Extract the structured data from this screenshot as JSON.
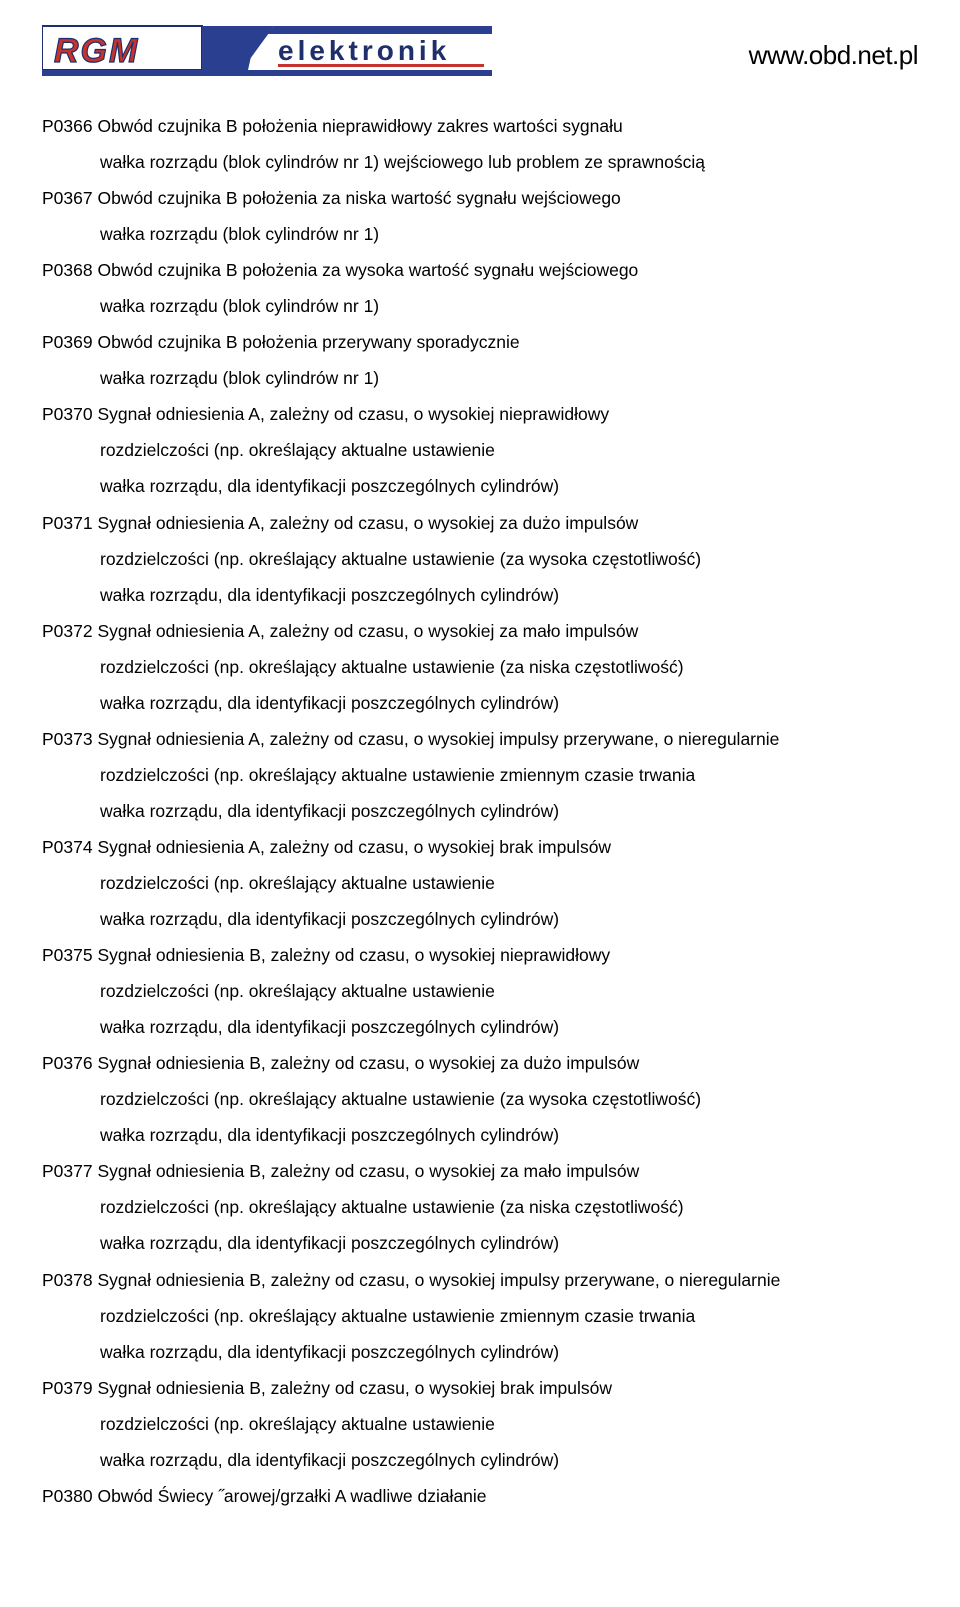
{
  "header": {
    "logo_rgm_text": "RGM",
    "logo_elek_text": "elektronik",
    "url": "www.obd.net.pl",
    "logo_colors": {
      "rgm_fill": "#c4332d",
      "rgm_outline": "#1f2f6b",
      "bar_blue": "#2a3f8f",
      "elek_text": "#1f2f6b",
      "underline": "#c4332d"
    }
  },
  "entries": [
    {
      "code": "P0366",
      "title": "Obwód czujnika B położenia nieprawidłowy zakres wartości sygnału",
      "subs": [
        "wałka rozrządu (blok cylindrów nr 1) wejściowego lub problem ze sprawnością"
      ]
    },
    {
      "code": "P0367",
      "title": "Obwód czujnika B położenia za niska wartość sygnału wejściowego",
      "subs": [
        "wałka rozrządu (blok cylindrów nr 1)"
      ]
    },
    {
      "code": "P0368",
      "title": "Obwód czujnika B położenia za wysoka wartość sygnału wejściowego",
      "subs": [
        "wałka rozrządu (blok cylindrów nr 1)"
      ]
    },
    {
      "code": "P0369",
      "title": "Obwód czujnika B położenia przerywany sporadycznie",
      "subs": [
        "wałka rozrządu (blok cylindrów nr 1)"
      ]
    },
    {
      "code": "P0370",
      "title": "Sygnał odniesienia A, zależny od czasu, o wysokiej nieprawidłowy",
      "subs": [
        "rozdzielczości (np. określający aktualne ustawienie",
        "wałka rozrządu, dla identyfikacji poszczególnych cylindrów)"
      ]
    },
    {
      "code": "P0371",
      "title": "Sygnał odniesienia A, zależny od czasu, o wysokiej za dużo impulsów",
      "subs": [
        "rozdzielczości (np. określający aktualne ustawienie (za wysoka częstotliwość)",
        "wałka rozrządu, dla identyfikacji poszczególnych cylindrów)"
      ]
    },
    {
      "code": "P0372",
      "title": "Sygnał odniesienia A, zależny od czasu, o wysokiej za mało impulsów",
      "subs": [
        "rozdzielczości (np. określający aktualne ustawienie (za niska częstotliwość)",
        "wałka rozrządu, dla identyfikacji poszczególnych cylindrów)"
      ]
    },
    {
      "code": "P0373",
      "title": "Sygnał odniesienia A, zależny od czasu, o wysokiej impulsy przerywane, o nieregularnie",
      "subs": [
        "rozdzielczości (np. określający aktualne ustawienie zmiennym czasie trwania",
        "wałka rozrządu, dla identyfikacji poszczególnych cylindrów)"
      ]
    },
    {
      "code": "P0374",
      "title": "Sygnał odniesienia A, zależny od czasu, o wysokiej brak impulsów",
      "subs": [
        "rozdzielczości (np. określający aktualne ustawienie",
        "wałka rozrządu, dla identyfikacji poszczególnych cylindrów)"
      ]
    },
    {
      "code": "P0375",
      "title": "Sygnał odniesienia B, zależny od czasu, o wysokiej nieprawidłowy",
      "subs": [
        "rozdzielczości (np. określający aktualne ustawienie",
        "wałka rozrządu, dla identyfikacji poszczególnych cylindrów)"
      ]
    },
    {
      "code": "P0376",
      "title": "Sygnał odniesienia B, zależny od czasu, o wysokiej za dużo impulsów",
      "subs": [
        "rozdzielczości (np. określający aktualne ustawienie (za wysoka częstotliwość)",
        "wałka rozrządu, dla identyfikacji poszczególnych cylindrów)"
      ]
    },
    {
      "code": "P0377",
      "title": "Sygnał odniesienia B, zależny od czasu, o wysokiej za mało impulsów",
      "subs": [
        "rozdzielczości (np. określający aktualne ustawienie (za niska częstotliwość)",
        "wałka rozrządu, dla identyfikacji poszczególnych cylindrów)"
      ]
    },
    {
      "code": "P0378",
      "title": "Sygnał odniesienia B, zależny od czasu, o wysokiej impulsy przerywane, o nieregularnie",
      "subs": [
        "rozdzielczości (np. określający aktualne ustawienie zmiennym czasie trwania",
        "wałka rozrządu, dla identyfikacji poszczególnych cylindrów)"
      ]
    },
    {
      "code": "P0379",
      "title": "Sygnał odniesienia B, zależny od czasu, o wysokiej brak impulsów",
      "subs": [
        "rozdzielczości (np. określający aktualne ustawienie",
        "wałka rozrządu, dla identyfikacji poszczególnych cylindrów)"
      ]
    },
    {
      "code": "P0380",
      "title": "Obwód Świecy ˝arowej/grzałki A wadliwe działanie",
      "subs": []
    }
  ]
}
